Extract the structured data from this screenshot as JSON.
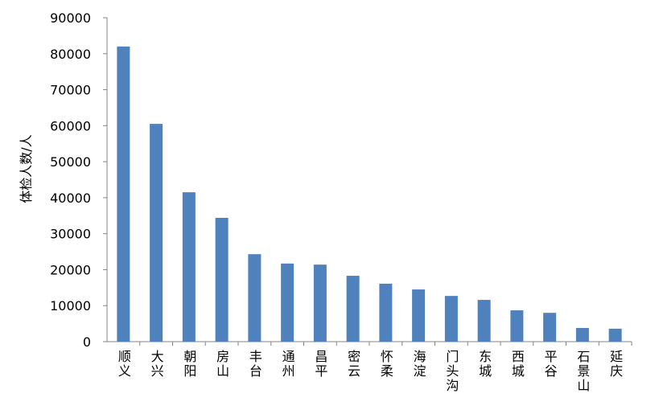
{
  "chart_data": {
    "type": "bar",
    "y_label": "体检人数/人",
    "categories": [
      "顺义",
      "大兴",
      "朝阳",
      "房山",
      "丰台",
      "通州",
      "昌平",
      "密云",
      "怀柔",
      "海淀",
      "门头沟",
      "东城",
      "西城",
      "平谷",
      "石景山",
      "延庆"
    ],
    "values": [
      82000,
      60500,
      41500,
      34400,
      24300,
      21700,
      21400,
      18300,
      16100,
      14500,
      12700,
      11600,
      8700,
      8000,
      3800,
      3600
    ],
    "color": "#4f81bd",
    "ylim": [
      0,
      90000
    ],
    "yticks": [
      0,
      10000,
      20000,
      30000,
      40000,
      50000,
      60000,
      70000,
      80000,
      90000
    ],
    "grid": false
  }
}
